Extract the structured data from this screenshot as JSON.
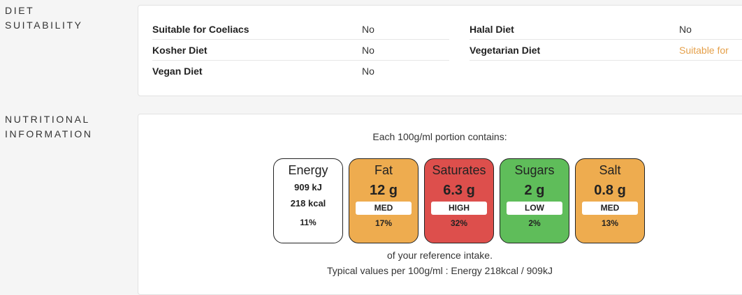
{
  "diet": {
    "label_line1": "Diet",
    "label_line2": "Suitability",
    "left": [
      {
        "name": "Suitable for Coeliacs",
        "value": "No"
      },
      {
        "name": "Kosher Diet",
        "value": "No"
      },
      {
        "name": "Vegan Diet",
        "value": "No"
      }
    ],
    "right": [
      {
        "name": "Halal Diet",
        "value": "No"
      },
      {
        "name": "Vegetarian Diet",
        "value": "Suitable for"
      }
    ],
    "accent_color": "#e5a04a"
  },
  "nutrition": {
    "label_line1": "Nutritional",
    "label_line2": "Information",
    "intro": "Each 100g/ml portion contains:",
    "energy": {
      "name": "Energy",
      "kj": "909 kJ",
      "kcal": "218 kcal",
      "percent": "11%",
      "color": "#ffffff"
    },
    "nutrients": [
      {
        "name": "Fat",
        "amount": "12 g",
        "level": "MED",
        "percent": "17%",
        "color": "#eeac4f"
      },
      {
        "name": "Saturates",
        "amount": "6.3 g",
        "level": "HIGH",
        "percent": "32%",
        "color": "#dd4f4c"
      },
      {
        "name": "Sugars",
        "amount": "2 g",
        "level": "LOW",
        "percent": "2%",
        "color": "#5fbd5a"
      },
      {
        "name": "Salt",
        "amount": "0.8 g",
        "level": "MED",
        "percent": "13%",
        "color": "#eeac4f"
      }
    ],
    "reference": "of your reference intake.",
    "typical": "Typical values per 100g/ml : Energy 218kcal / 909kJ"
  }
}
